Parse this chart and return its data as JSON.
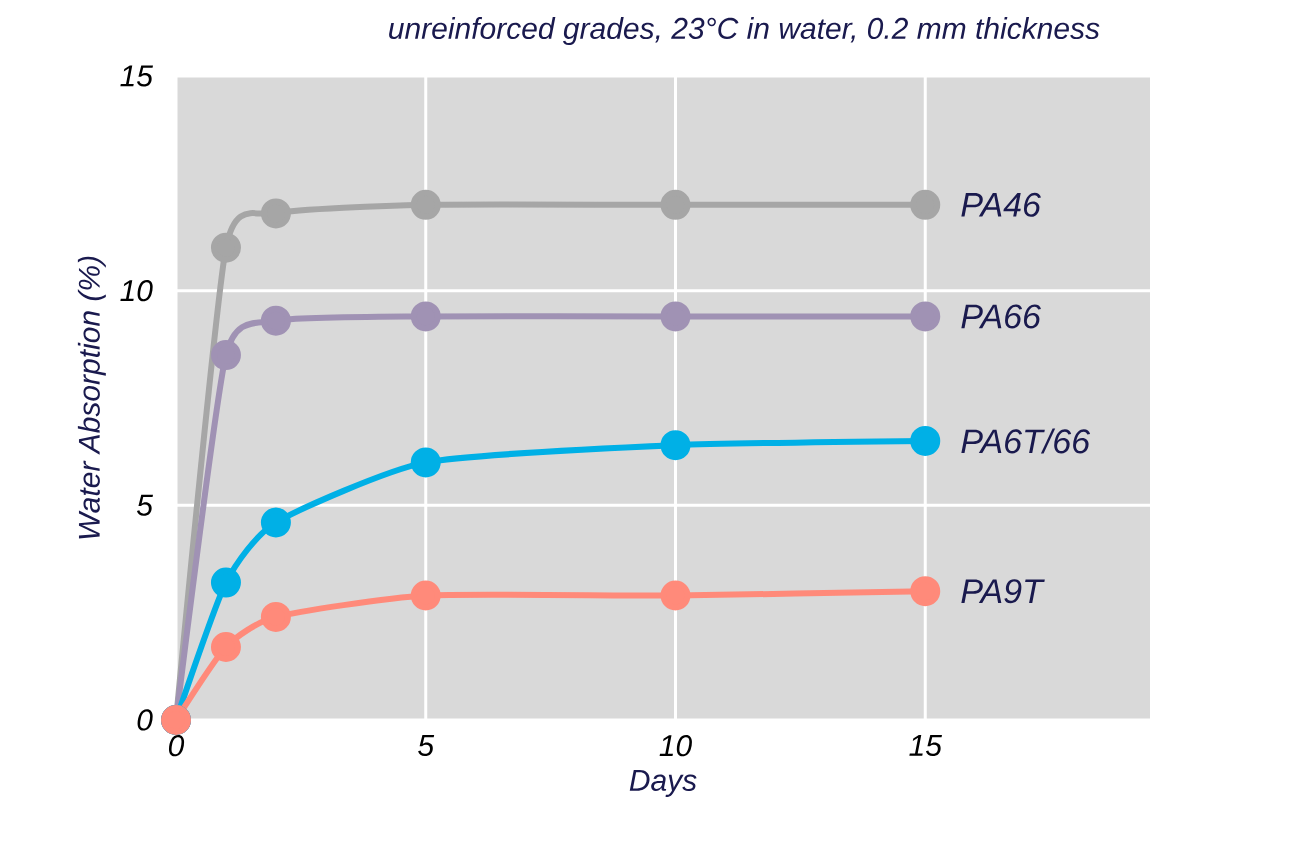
{
  "chart_data": {
    "type": "line",
    "title": "unreinforced grades, 23°C in water, 0.2 mm thickness",
    "xlabel": "Days",
    "ylabel": "Water Absorption (%)",
    "x": [
      0,
      1,
      2,
      5,
      10,
      15
    ],
    "series": [
      {
        "name": "PA46",
        "color": "#a6a6a6",
        "values": [
          0,
          11,
          11.8,
          12,
          12,
          12
        ]
      },
      {
        "name": "PA66",
        "color": "#a092b4",
        "values": [
          0,
          8.5,
          9.3,
          9.4,
          9.4,
          9.4
        ]
      },
      {
        "name": "PA6T/66",
        "color": "#00b0e6",
        "values": [
          0,
          3.2,
          4.6,
          6.0,
          6.4,
          6.5
        ]
      },
      {
        "name": "PA9T",
        "color": "#ff8a7a",
        "values": [
          0,
          1.7,
          2.4,
          2.9,
          2.9,
          3.0
        ]
      }
    ],
    "xlim": [
      0,
      19.5
    ],
    "ylim": [
      0,
      15
    ],
    "xticks": [
      0,
      5,
      10,
      15
    ],
    "yticks": [
      0,
      5,
      10,
      15
    ],
    "grid": true,
    "marker": "circle",
    "line_style": "solid"
  }
}
